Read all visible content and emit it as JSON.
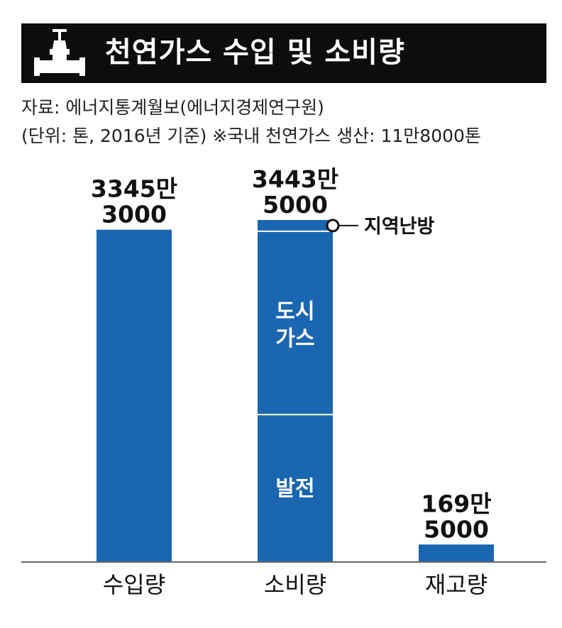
{
  "header": {
    "title": "천연가스 수입 및 소비량",
    "icon": "valve-icon"
  },
  "source": "자료: 에너지통계월보(에너지경제연구원)",
  "unit_note": "(단위: 톤, 2016년 기준) ※국내 천연가스 생산: 11만8000톤",
  "colors": {
    "bar": "#1a66b0",
    "title_bg": "#0d0d0d",
    "segment_line": "#ffffff"
  },
  "chart_data": {
    "type": "bar",
    "categories": [
      "수입량",
      "소비량",
      "재고량"
    ],
    "values": [
      33453000,
      34435000,
      1695000
    ],
    "value_labels": [
      [
        "3345만",
        "3000"
      ],
      [
        "3443만",
        "5000"
      ],
      [
        "169만",
        "5000"
      ]
    ],
    "stacked_consumption": {
      "category": "소비량",
      "segments": [
        {
          "name": "발전",
          "label_lines": [
            "발전"
          ],
          "approx_value": 14800000
        },
        {
          "name": "도시가스",
          "label_lines": [
            "도시",
            "가스"
          ],
          "approx_value": 18500000
        },
        {
          "name": "지역난방",
          "label_lines": [
            "지역난방"
          ],
          "approx_value": 1135000
        }
      ]
    },
    "title": "천연가스 수입 및 소비량",
    "grid": false,
    "legend": "none"
  }
}
